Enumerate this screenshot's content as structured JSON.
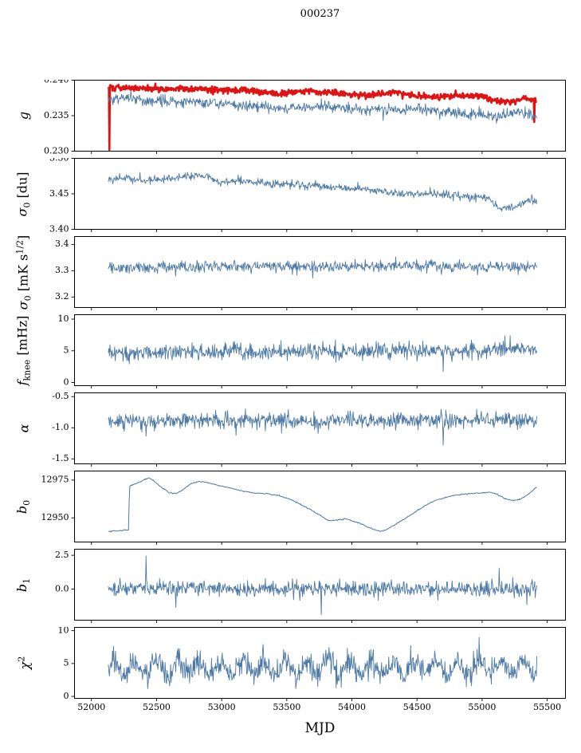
{
  "chart_data": {
    "type": "line",
    "title": "000237",
    "xlabel": "MJD",
    "xlim": [
      51870,
      55640
    ],
    "x_start": 52130,
    "x_end": 55420,
    "xticks": [
      52000,
      52500,
      53000,
      53500,
      54000,
      54500,
      55000,
      55500
    ],
    "xtick_labels": [
      "52000",
      "52500",
      "53000",
      "53500",
      "54000",
      "54500",
      "55000",
      "55500"
    ],
    "grid": false,
    "legend": "none",
    "colors": {
      "primary_line": "#4c79a5",
      "highlight_line": "#e01212",
      "axis": "#000000"
    },
    "panels": [
      {
        "id": "g",
        "ylabel_text": "g",
        "ylabel_segments": [
          {
            "t": "g",
            "s": "i"
          }
        ],
        "ylim": [
          0.23,
          0.24
        ],
        "yticks": {
          "values": [
            0.23,
            0.235,
            0.24
          ],
          "labels": [
            "0.230",
            "0.235",
            "0.240"
          ]
        },
        "series": [
          {
            "name": "g-smoothed",
            "color": "#e01212",
            "linewidth": 2.6,
            "n": 840,
            "seed": 101,
            "noise": 0.00022,
            "trend": [
              [
                52130,
                0.239
              ],
              [
                52400,
                0.2388
              ],
              [
                52700,
                0.2388
              ],
              [
                53000,
                0.2386
              ],
              [
                53200,
                0.2386
              ],
              [
                53450,
                0.2381
              ],
              [
                53650,
                0.2385
              ],
              [
                53900,
                0.2382
              ],
              [
                54100,
                0.2379
              ],
              [
                54300,
                0.2383
              ],
              [
                54450,
                0.2379
              ],
              [
                54600,
                0.2376
              ],
              [
                54800,
                0.2379
              ],
              [
                55000,
                0.2377
              ],
              [
                55120,
                0.2371
              ],
              [
                55220,
                0.2369
              ],
              [
                55320,
                0.2375
              ],
              [
                55420,
                0.2371
              ]
            ],
            "spikes": [
              [
                52136,
                0.2302
              ],
              [
                55400,
                0.2341
              ]
            ]
          },
          {
            "name": "g-raw",
            "color": "#4c79a5",
            "linewidth": 0.9,
            "n": 840,
            "seed": 102,
            "noise": 0.00038,
            "trend": [
              [
                52130,
                0.2372
              ],
              [
                52250,
                0.2376
              ],
              [
                52500,
                0.2369
              ],
              [
                52750,
                0.237
              ],
              [
                53000,
                0.2366
              ],
              [
                53250,
                0.2364
              ],
              [
                53500,
                0.236
              ],
              [
                53750,
                0.2363
              ],
              [
                54000,
                0.236
              ],
              [
                54250,
                0.2357
              ],
              [
                54500,
                0.236
              ],
              [
                54750,
                0.2355
              ],
              [
                55000,
                0.2351
              ],
              [
                55150,
                0.2349
              ],
              [
                55280,
                0.2356
              ],
              [
                55420,
                0.2349
              ]
            ],
            "spikes": []
          }
        ]
      },
      {
        "id": "sigma0-du",
        "ylabel_text": "sigma0 [du]",
        "ylabel_segments": [
          {
            "t": "σ",
            "s": "i"
          },
          {
            "t": "0",
            "s": "sub"
          },
          {
            "t": " [du]",
            "s": "n"
          }
        ],
        "ylim": [
          3.4,
          3.5
        ],
        "yticks": {
          "values": [
            3.4,
            3.45,
            3.5
          ],
          "labels": [
            "3.40",
            "3.45",
            "3.50"
          ]
        },
        "series": [
          {
            "name": "sigma0-du",
            "color": "#4c79a5",
            "linewidth": 0.9,
            "n": 760,
            "seed": 201,
            "noise": 0.0028,
            "trend": [
              [
                52130,
                3.47
              ],
              [
                52250,
                3.473
              ],
              [
                52400,
                3.468
              ],
              [
                52600,
                3.471
              ],
              [
                52800,
                3.477
              ],
              [
                52900,
                3.474
              ],
              [
                53000,
                3.466
              ],
              [
                53150,
                3.469
              ],
              [
                53300,
                3.466
              ],
              [
                53500,
                3.463
              ],
              [
                53700,
                3.462
              ],
              [
                53900,
                3.459
              ],
              [
                54100,
                3.457
              ],
              [
                54300,
                3.452
              ],
              [
                54500,
                3.451
              ],
              [
                54700,
                3.449
              ],
              [
                54900,
                3.446
              ],
              [
                55050,
                3.444
              ],
              [
                55150,
                3.428
              ],
              [
                55250,
                3.432
              ],
              [
                55350,
                3.442
              ],
              [
                55420,
                3.438
              ]
            ],
            "spikes": []
          }
        ]
      },
      {
        "id": "sigma0-mk",
        "ylabel_text": "sigma0 [mK s^1/2]",
        "ylabel_segments": [
          {
            "t": "σ",
            "s": "i"
          },
          {
            "t": "0",
            "s": "sub"
          },
          {
            "t": " [mK s",
            "s": "n"
          },
          {
            "t": "1/2",
            "s": "sup"
          },
          {
            "t": "]",
            "s": "n"
          }
        ],
        "ylim": [
          3.16,
          3.43
        ],
        "yticks": {
          "values": [
            3.2,
            3.3,
            3.4
          ],
          "labels": [
            "3.2",
            "3.3",
            "3.4"
          ]
        },
        "series": [
          {
            "name": "sigma0-mk",
            "color": "#4c79a5",
            "linewidth": 0.9,
            "n": 760,
            "seed": 301,
            "noise": 0.011,
            "clamp": [
              3.18,
              3.41
            ],
            "trend": [
              [
                52130,
                3.308
              ],
              [
                52400,
                3.312
              ],
              [
                53000,
                3.316
              ],
              [
                53500,
                3.318
              ],
              [
                54000,
                3.316
              ],
              [
                54500,
                3.318
              ],
              [
                55000,
                3.316
              ],
              [
                55420,
                3.317
              ]
            ],
            "spikes": [
              [
                53700,
                3.272
              ]
            ]
          }
        ]
      },
      {
        "id": "fknee",
        "ylabel_text": "f_knee [mHz]",
        "ylabel_segments": [
          {
            "t": "f",
            "s": "i"
          },
          {
            "t": "knee",
            "s": "sub"
          },
          {
            "t": " [mHz]",
            "s": "n"
          }
        ],
        "ylim": [
          -0.5,
          10.7
        ],
        "yticks": {
          "values": [
            0,
            5,
            10
          ],
          "labels": [
            "0",
            "5",
            "10"
          ]
        },
        "series": [
          {
            "name": "fknee",
            "color": "#4c79a5",
            "linewidth": 0.9,
            "n": 820,
            "seed": 401,
            "noise": 0.65,
            "clamp": [
              0.4,
              10.4
            ],
            "trend": [
              [
                52130,
                4.7
              ],
              [
                53000,
                4.8
              ],
              [
                54000,
                4.9
              ],
              [
                55000,
                5.1
              ],
              [
                55420,
                5.3
              ]
            ],
            "spikes": [
              [
                54700,
                1.7
              ]
            ]
          }
        ]
      },
      {
        "id": "alpha",
        "ylabel_text": "alpha",
        "ylabel_segments": [
          {
            "t": "α",
            "s": "i"
          }
        ],
        "ylim": [
          -1.58,
          -0.44
        ],
        "yticks": {
          "values": [
            -1.5,
            -1.0,
            -0.5
          ],
          "labels": [
            "-1.5",
            "-1.0",
            "-0.5"
          ]
        },
        "series": [
          {
            "name": "alpha",
            "color": "#4c79a5",
            "linewidth": 0.9,
            "n": 820,
            "seed": 501,
            "noise": 0.065,
            "clamp": [
              -1.52,
              -0.52
            ],
            "trend": [
              [
                52130,
                -0.88
              ],
              [
                53000,
                -0.885
              ],
              [
                54000,
                -0.88
              ],
              [
                55420,
                -0.875
              ]
            ],
            "spikes": [
              [
                54700,
                -1.28
              ]
            ]
          }
        ]
      },
      {
        "id": "b0",
        "ylabel_text": "b0",
        "ylabel_segments": [
          {
            "t": "b",
            "s": "i"
          },
          {
            "t": "0",
            "s": "sub"
          }
        ],
        "ylim": [
          12934,
          12981
        ],
        "yticks": {
          "values": [
            12950,
            12975
          ],
          "labels": [
            "12950",
            "12975"
          ]
        },
        "series": [
          {
            "name": "b0",
            "color": "#4c79a5",
            "linewidth": 1.0,
            "n": 640,
            "seed": 601,
            "noise": 0.18,
            "trend": [
              [
                52130,
                12941
              ],
              [
                52200,
                12941.5
              ],
              [
                52285,
                12942
              ],
              [
                52292,
                12971
              ],
              [
                52340,
                12972.5
              ],
              [
                52400,
                12975
              ],
              [
                52440,
                12976.5
              ],
              [
                52480,
                12974.5
              ],
              [
                52540,
                12970
              ],
              [
                52600,
                12966.5
              ],
              [
                52650,
                12966
              ],
              [
                52700,
                12968.5
              ],
              [
                52760,
                12972.5
              ],
              [
                52820,
                12974
              ],
              [
                52880,
                12973.5
              ],
              [
                52950,
                12972
              ],
              [
                53050,
                12970
              ],
              [
                53150,
                12968
              ],
              [
                53250,
                12966.5
              ],
              [
                53350,
                12966
              ],
              [
                53450,
                12964.5
              ],
              [
                53550,
                12961.5
              ],
              [
                53650,
                12957
              ],
              [
                53750,
                12952
              ],
              [
                53820,
                12948
              ],
              [
                53880,
                12948.5
              ],
              [
                53950,
                12949.5
              ],
              [
                54000,
                12948
              ],
              [
                54060,
                12946.5
              ],
              [
                54120,
                12944
              ],
              [
                54180,
                12942
              ],
              [
                54220,
                12941
              ],
              [
                54260,
                12942
              ],
              [
                54320,
                12945
              ],
              [
                54400,
                12949
              ],
              [
                54480,
                12953.5
              ],
              [
                54560,
                12958
              ],
              [
                54640,
                12961.5
              ],
              [
                54720,
                12963.5
              ],
              [
                54800,
                12965
              ],
              [
                54900,
                12966
              ],
              [
                55000,
                12966.5
              ],
              [
                55060,
                12967
              ],
              [
                55120,
                12965.5
              ],
              [
                55180,
                12962.5
              ],
              [
                55240,
                12961.5
              ],
              [
                55300,
                12962.5
              ],
              [
                55360,
                12966
              ],
              [
                55420,
                12970.5
              ]
            ],
            "spikes": []
          }
        ]
      },
      {
        "id": "b1",
        "ylabel_text": "b1",
        "ylabel_segments": [
          {
            "t": "b",
            "s": "i"
          },
          {
            "t": "1",
            "s": "sub"
          }
        ],
        "ylim": [
          -2.3,
          2.95
        ],
        "yticks": {
          "values": [
            0.0,
            2.5
          ],
          "labels": [
            "0.0",
            "2.5"
          ]
        },
        "series": [
          {
            "name": "b1",
            "color": "#4c79a5",
            "linewidth": 0.9,
            "n": 820,
            "seed": 701,
            "noise": 0.27,
            "clamp": [
              -2.2,
              2.85
            ],
            "trend": [
              [
                52130,
                0.05
              ],
              [
                55420,
                0.0
              ]
            ],
            "spikes": [
              [
                52420,
                2.45
              ],
              [
                52650,
                -1.35
              ],
              [
                53765,
                -1.9
              ],
              [
                55130,
                1.55
              ],
              [
                55345,
                -1.15
              ]
            ]
          }
        ]
      },
      {
        "id": "chi2",
        "ylabel_text": "chi^2",
        "ylabel_segments": [
          {
            "t": "χ",
            "s": "i"
          },
          {
            "t": "2",
            "s": "sup"
          }
        ],
        "ylim": [
          -0.3,
          10.5
        ],
        "yticks": {
          "values": [
            0,
            5,
            10
          ],
          "labels": [
            "0",
            "5",
            "10"
          ]
        },
        "series": [
          {
            "name": "chi2",
            "color": "#4c79a5",
            "linewidth": 0.9,
            "n": 840,
            "seed": 801,
            "noise": 0.95,
            "clamp": [
              0.4,
              9.8
            ],
            "osc": {
              "amp": 1.15,
              "period": 165,
              "phase": 0
            },
            "trend": [
              [
                52130,
                4.4
              ],
              [
                55420,
                4.4
              ]
            ],
            "spikes": []
          }
        ]
      }
    ]
  }
}
